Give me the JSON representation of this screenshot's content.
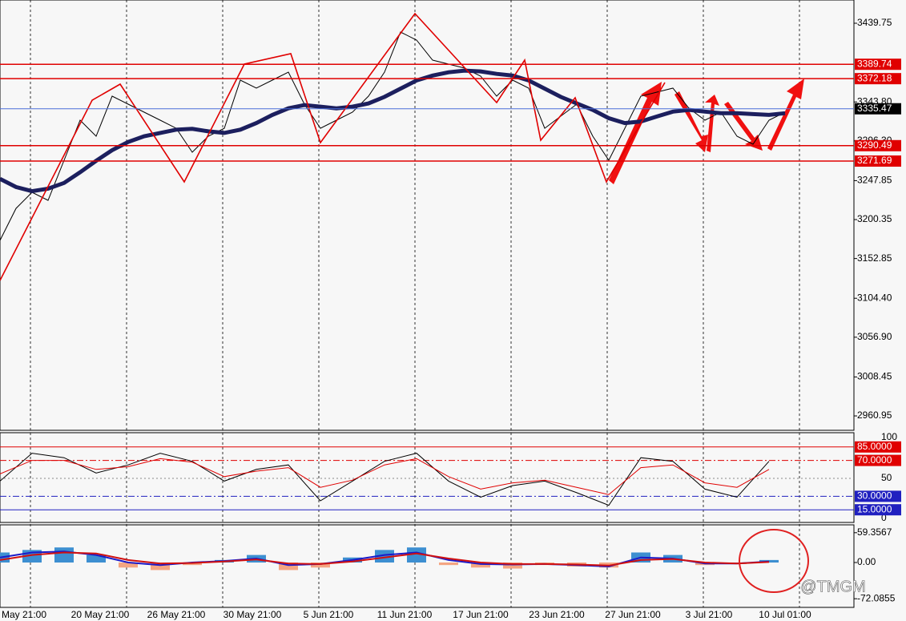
{
  "chart_data": {
    "type": "line",
    "x_labels": [
      "May 21:00",
      "20 May 21:00",
      "26 May 21:00",
      "30 May 21:00",
      "5 Jun 21:00",
      "11 Jun 21:00",
      "17 Jun 21:00",
      "23 Jun 21:00",
      "27 Jun 21:00",
      "3 Jul 21:00",
      "10 Jul 01:00"
    ],
    "xlim": [
      0,
      53.3
    ],
    "ylim": [
      2943.4,
      3468.1
    ],
    "yticks": [
      3439.75,
      {
        "value": 3343.8,
        "label": "3343.80"
      },
      {
        "value": 3296.3,
        "label": "3296.30"
      },
      3247.85,
      3200.35,
      3152.85,
      {
        "value": 3104.4,
        "label": "3104.40"
      },
      {
        "value": 3056.9,
        "label": "3056.90"
      },
      3008.45,
      2960.95
    ],
    "levels": [
      {
        "value": 3389.74,
        "color": "#e00000"
      },
      {
        "value": 3372.18,
        "color": "#e00000"
      },
      {
        "value": 3335.47,
        "color": "#4a6fd8"
      },
      {
        "value": 3290.49,
        "color": "#e00000"
      },
      {
        "value": 3271.69,
        "color": "#e00000"
      }
    ],
    "series": [
      {
        "name": "Close",
        "color": "#000000",
        "values": [
          3175.0,
          3214.0,
          3233.6,
          3223.8,
          3272.7,
          3321.5,
          3302.0,
          3350.8,
          3341.1,
          3331.3,
          3321.5,
          3311.7,
          3282.5,
          3302.0,
          3311.7,
          3370.4,
          3360.6,
          3370.4,
          3380.2,
          3341.1,
          3311.7,
          3321.5,
          3331.3,
          3350.8,
          3380.2,
          3429.0,
          3419.2,
          3394.8,
          3389.9,
          3385.0,
          3375.3,
          3350.8,
          3370.4,
          3360.6,
          3311.7,
          3326.4,
          3341.1,
          3302.0,
          3272.7,
          3311.7,
          3350.8,
          3355.7,
          3360.6,
          3336.2,
          3321.5,
          3331.3,
          3302.0,
          3292.2,
          3321.5,
          3331.3
        ]
      },
      {
        "name": "MA",
        "color": "#1c1f5e",
        "values": [
          3250,
          3240,
          3235,
          3238,
          3245,
          3258,
          3272,
          3285,
          3295,
          3302,
          3306,
          3310,
          3311,
          3308,
          3306,
          3310,
          3318,
          3328,
          3336,
          3340,
          3338,
          3336,
          3338,
          3342,
          3350,
          3360,
          3370,
          3376,
          3380,
          3382,
          3381,
          3378,
          3376,
          3370,
          3360,
          3350,
          3342,
          3334,
          3324,
          3318,
          3320,
          3326,
          3332,
          3334,
          3332,
          3330,
          3330,
          3329,
          3328,
          3330
        ]
      }
    ],
    "zigzag": {
      "x": [
        0,
        5.75,
        7.5,
        11.5,
        15.25,
        18.15,
        20,
        25.9,
        31,
        32.75,
        33.75,
        35.9,
        37.85,
        41.5
      ],
      "values": [
        3126.1,
        3345.9,
        3365.5,
        3246.3,
        3389.9,
        3402.6,
        3294.2,
        3451.5,
        3343.0,
        3394.8,
        3297.1,
        3348.9,
        3246.3,
        3367.5
      ],
      "color": "#e00000"
    },
    "oscillator": {
      "ylim": [
        0,
        100
      ],
      "yticks": [
        0,
        50,
        100
      ],
      "levels": [
        {
          "value": 85,
          "label": "85.0000"
        },
        {
          "value": 70,
          "label": "70.0000"
        },
        {
          "value": 30,
          "label": "30.0000"
        },
        {
          "value": 15,
          "label": "15.0000"
        }
      ],
      "series": [
        {
          "name": "%K",
          "color": "#000000",
          "values": [
            47,
            78,
            73,
            56,
            65,
            78,
            69,
            47,
            60,
            65,
            25,
            47,
            69,
            78,
            47,
            29,
            42,
            47,
            34,
            20,
            73,
            69,
            38,
            29,
            69
          ]
        },
        {
          "name": "%D",
          "color": "#e00000",
          "values": [
            55,
            70,
            70,
            60,
            63,
            72,
            68,
            52,
            58,
            62,
            40,
            48,
            65,
            72,
            52,
            38,
            45,
            48,
            40,
            32,
            62,
            65,
            45,
            40,
            60
          ]
        }
      ]
    },
    "macd": {
      "ylim": [
        -89.3,
        75
      ],
      "yticks": [
        59.3567,
        {
          "value": 0,
          "label": "0.00"
        },
        -72.0855
      ],
      "histogram": [
        20,
        25,
        30,
        15,
        -10,
        -15,
        -5,
        5,
        15,
        -15,
        -10,
        10,
        25,
        30,
        -5,
        -10,
        -12,
        -5,
        -8,
        -10,
        20,
        15,
        -5,
        -3,
        5
      ],
      "series": [
        {
          "name": "MACD",
          "color": "#1a1ac8",
          "values": [
            10,
            20,
            22,
            15,
            0,
            -5,
            0,
            3,
            8,
            -5,
            -3,
            5,
            15,
            20,
            5,
            -3,
            -4,
            -3,
            -5,
            -8,
            10,
            8,
            -2,
            -2,
            2
          ]
        },
        {
          "name": "Signal",
          "color": "#d01010",
          "values": [
            5,
            15,
            20,
            18,
            5,
            -2,
            -1,
            2,
            6,
            -2,
            -3,
            2,
            10,
            18,
            8,
            0,
            -3,
            -3,
            -4,
            -6,
            5,
            7,
            0,
            -2,
            1
          ]
        }
      ]
    },
    "watermark": "@TMGM"
  }
}
